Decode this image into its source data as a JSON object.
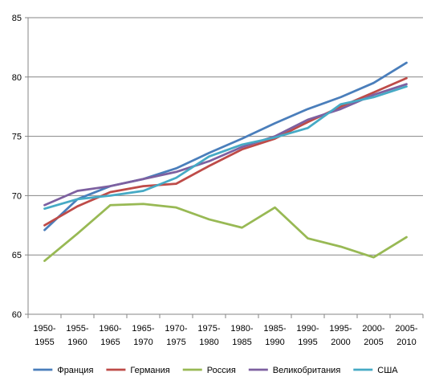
{
  "chart_data": {
    "type": "line",
    "title": "",
    "xlabel": "",
    "ylabel": "",
    "ylim": [
      60,
      85
    ],
    "yticks": [
      60,
      65,
      70,
      75,
      80,
      85
    ],
    "grid": "horizontal",
    "legend_position": "bottom",
    "categories": [
      [
        "1950-",
        "1955"
      ],
      [
        "1955-",
        "1960"
      ],
      [
        "1960-",
        "1965"
      ],
      [
        "1965-",
        "1970"
      ],
      [
        "1970-",
        "1975"
      ],
      [
        "1975-",
        "1980"
      ],
      [
        "1980-",
        "1985"
      ],
      [
        "1985-",
        "1990"
      ],
      [
        "1990-",
        "1995"
      ],
      [
        "1995-",
        "2000"
      ],
      [
        "2000-",
        "2005"
      ],
      [
        "2005-",
        "2010"
      ]
    ],
    "series": [
      {
        "name": "Франция",
        "color": "#4A7EBB",
        "values": [
          67.1,
          69.7,
          70.8,
          71.4,
          72.3,
          73.6,
          74.8,
          76.1,
          77.3,
          78.3,
          79.5,
          81.2
        ]
      },
      {
        "name": "Германия",
        "color": "#BE4B48",
        "values": [
          67.5,
          69.1,
          70.3,
          70.8,
          71.0,
          72.5,
          73.9,
          74.8,
          76.2,
          77.5,
          78.7,
          79.9
        ]
      },
      {
        "name": "Россия",
        "color": "#98B954",
        "values": [
          64.5,
          66.8,
          69.2,
          69.3,
          69.0,
          68.0,
          67.3,
          69.0,
          66.4,
          65.7,
          64.8,
          66.5
        ]
      },
      {
        "name": "Великобритания",
        "color": "#7D60A0",
        "values": [
          69.2,
          70.4,
          70.8,
          71.4,
          72.0,
          72.9,
          74.1,
          75.0,
          76.4,
          77.3,
          78.5,
          79.4
        ]
      },
      {
        "name": "США",
        "color": "#46AAC5",
        "values": [
          68.9,
          69.7,
          70.0,
          70.4,
          71.5,
          73.3,
          74.3,
          74.9,
          75.7,
          77.7,
          78.3,
          79.2
        ]
      }
    ]
  }
}
